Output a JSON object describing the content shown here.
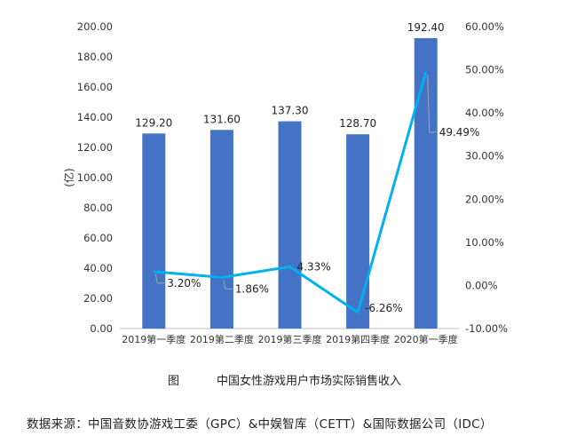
{
  "chart_data": {
    "type": "bar",
    "categories": [
      "2019第一季度",
      "2019第二季度",
      "2019第三季度",
      "2019第四季度",
      "2020第一季度"
    ],
    "series": [
      {
        "type": "bar",
        "axis": "left",
        "values": [
          129.2,
          131.6,
          137.3,
          128.7,
          192.4
        ],
        "labels": [
          "129.20",
          "131.60",
          "137.30",
          "128.70",
          "192.40"
        ],
        "color": "#4472c4"
      },
      {
        "type": "line",
        "axis": "right",
        "values": [
          3.2,
          1.86,
          4.33,
          -6.26,
          49.49
        ],
        "labels": [
          "3.20%",
          "1.86%",
          "4.33%",
          "-6.26%",
          "49.49%"
        ],
        "color": "#00b0f0"
      }
    ],
    "ylabel": "(亿)",
    "ylim": [
      0,
      200
    ],
    "y_ticks": [
      "0.00",
      "20.00",
      "40.00",
      "60.00",
      "80.00",
      "100.00",
      "120.00",
      "140.00",
      "160.00",
      "180.00",
      "200.00"
    ],
    "y2lim": [
      -10,
      60
    ],
    "y2_ticks": [
      "-10.00%",
      "0.00%",
      "10.00%",
      "20.00%",
      "30.00%",
      "40.00%",
      "50.00%",
      "60.00%"
    ],
    "grid": false,
    "legend": "none"
  },
  "caption": {
    "figure_label": "图",
    "title": "中国女性游戏用户市场实际销售收入"
  },
  "source_note": "数据来源：中国音数协游戏工委（GPC）&中娱智库（CETT）&国际数据公司（IDC）"
}
